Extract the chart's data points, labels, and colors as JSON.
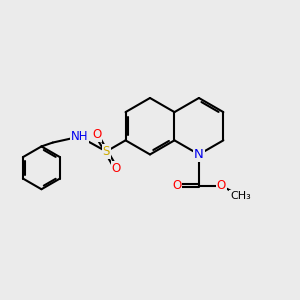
{
  "bg_color": "#ebebeb",
  "bond_color": "#000000",
  "bond_width": 1.5,
  "atom_colors": {
    "N": "#0000ee",
    "O": "#ff0000",
    "S": "#ccaa00",
    "H": "#708090",
    "C": "#000000"
  },
  "font_size": 8.5,
  "figsize": [
    3.0,
    3.0
  ],
  "dpi": 100
}
